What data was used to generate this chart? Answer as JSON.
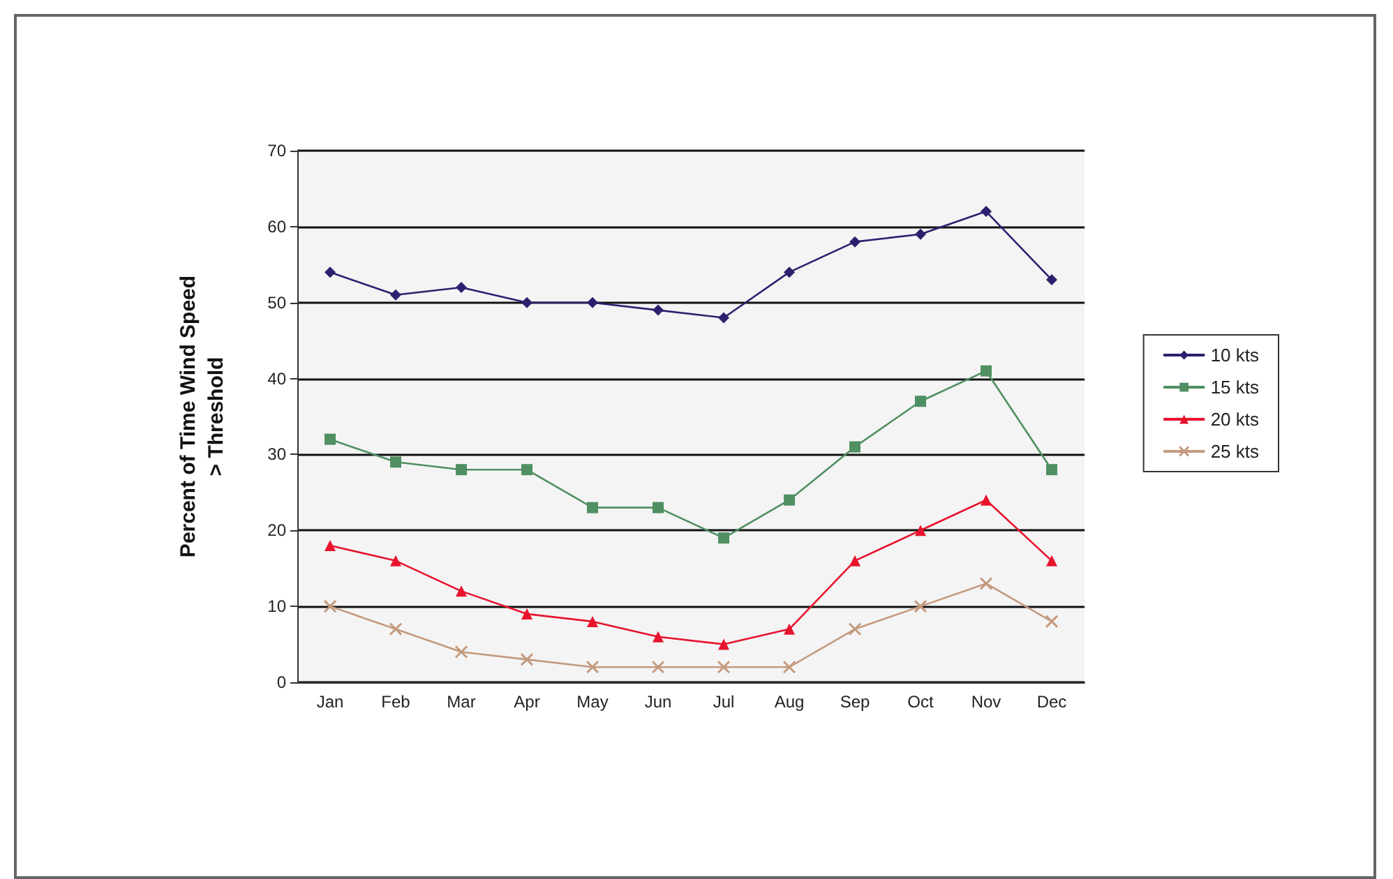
{
  "chart_data": {
    "type": "line",
    "ylabel": "Percent of Time Wind Speed\n> Threshold",
    "categories": [
      "Jan",
      "Feb",
      "Mar",
      "Apr",
      "May",
      "Jun",
      "Jul",
      "Aug",
      "Sep",
      "Oct",
      "Nov",
      "Dec"
    ],
    "series": [
      {
        "name": "10 kts",
        "color": "#2e1f6e",
        "marker": "diamond",
        "values": [
          54,
          51,
          52,
          50,
          50,
          49,
          48,
          54,
          58,
          59,
          62,
          53
        ]
      },
      {
        "name": "15 kts",
        "color": "#4f8f62",
        "marker": "square",
        "values": [
          32,
          29,
          28,
          28,
          23,
          23,
          19,
          24,
          31,
          37,
          41,
          28
        ]
      },
      {
        "name": "20 kts",
        "color": "#e8132d",
        "marker": "triangle",
        "values": [
          18,
          16,
          12,
          9,
          8,
          6,
          5,
          7,
          16,
          20,
          24,
          16
        ]
      },
      {
        "name": "25 kts",
        "color": "#c49a7e",
        "marker": "cross",
        "values": [
          10,
          7,
          4,
          3,
          2,
          2,
          2,
          2,
          7,
          10,
          13,
          8
        ]
      }
    ],
    "ylim": [
      0,
      70
    ],
    "yticks": [
      0,
      10,
      20,
      30,
      40,
      50,
      60,
      70
    ],
    "grid": "y",
    "legend": "right",
    "line_style": "solid"
  }
}
